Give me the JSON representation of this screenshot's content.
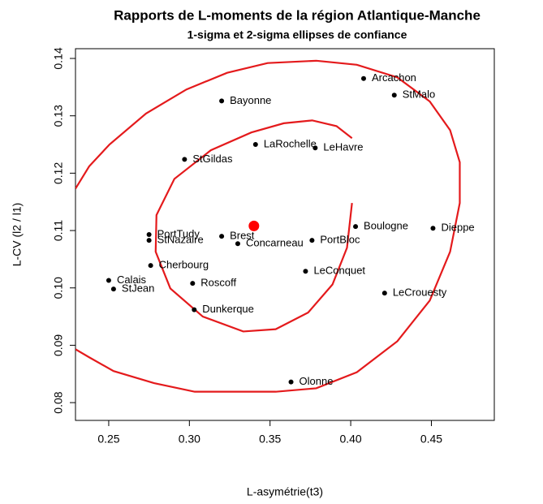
{
  "chart_data": {
    "type": "scatter",
    "title": "Rapports de L-moments de la région Atlantique-Manche",
    "subtitle": "1-sigma et 2-sigma ellipses de confiance",
    "xlabel": "L-asymétrie(t3)",
    "ylabel": "L-CV (l2 / l1)",
    "xlim": [
      0.2294,
      0.489
    ],
    "ylim": [
      0.0769,
      0.1417
    ],
    "xticks": [
      0.25,
      {
        "value": 0.3,
        "label": "0.30"
      },
      0.35,
      {
        "value": 0.4,
        "label": "0.40"
      },
      0.45
    ],
    "yticks": [
      0.08,
      0.09,
      {
        "value": 0.1,
        "label": "0.10"
      },
      0.11,
      0.12,
      0.13,
      0.14
    ],
    "point_color": "#000000",
    "labels": [
      "Arcachon",
      "StMalo",
      "Bayonne",
      "LaRochelle",
      "LeHavre",
      "StGildas",
      "PortTudy",
      "StNazaire",
      "Brest",
      "Concarneau",
      "PortBloc",
      "Boulogne",
      "Dieppe",
      "Cherbourg",
      "LeConquet",
      "Calais",
      "StJean",
      "Roscoff",
      "Dunkerque",
      "LeCrouesty",
      "Olonne"
    ],
    "x": [
      0.408,
      0.427,
      0.32,
      0.341,
      0.378,
      0.297,
      0.275,
      0.275,
      0.32,
      0.33,
      0.376,
      0.403,
      0.451,
      0.276,
      0.372,
      0.25,
      0.253,
      0.302,
      0.303,
      0.421,
      0.363
    ],
    "y": [
      0.1365,
      0.1336,
      0.1326,
      0.125,
      0.1244,
      0.1224,
      0.1093,
      0.1083,
      0.109,
      0.1077,
      0.1083,
      0.1107,
      0.1104,
      0.1039,
      0.1029,
      0.1013,
      0.0998,
      0.1008,
      0.0962,
      0.0991,
      0.0836
    ],
    "center": {
      "x": 0.34,
      "y": 0.1108,
      "color": "#ff0000"
    },
    "ellipse_color": "#e41a1c",
    "ellipses": [
      {
        "x": [
          0.4008,
          0.3912,
          0.3761,
          0.3585,
          0.3384,
          0.3133,
          0.2907,
          0.2796,
          0.2791,
          0.2882,
          0.3083,
          0.3334,
          0.3535,
          0.3736,
          0.3887,
          0.3977,
          0.4008
        ],
        "y": [
          0.1261,
          0.1282,
          0.1292,
          0.1287,
          0.1271,
          0.124,
          0.119,
          0.1127,
          0.1063,
          0.0999,
          0.095,
          0.0924,
          0.0928,
          0.0957,
          0.1006,
          0.107,
          0.1148
        ]
      },
      {
        "x": [
          0.2294,
          0.2379,
          0.2505,
          0.2731,
          0.2982,
          0.3234,
          0.3485,
          0.3786,
          0.4038,
          0.4289,
          0.449,
          0.4616,
          0.4676,
          0.4676,
          0.4616,
          0.449,
          0.4289,
          0.4038,
          0.3786,
          0.3535,
          0.3284,
          0.3033,
          0.2781,
          0.253,
          0.2379,
          0.2294
        ],
        "y": [
          0.1173,
          0.1212,
          0.125,
          0.1304,
          0.1346,
          0.1375,
          0.1392,
          0.1396,
          0.1389,
          0.1367,
          0.1325,
          0.1275,
          0.1219,
          0.1148,
          0.1063,
          0.0978,
          0.0907,
          0.0853,
          0.0825,
          0.0819,
          0.0819,
          0.0819,
          0.0834,
          0.0855,
          0.0879,
          0.0893
        ]
      }
    ]
  }
}
